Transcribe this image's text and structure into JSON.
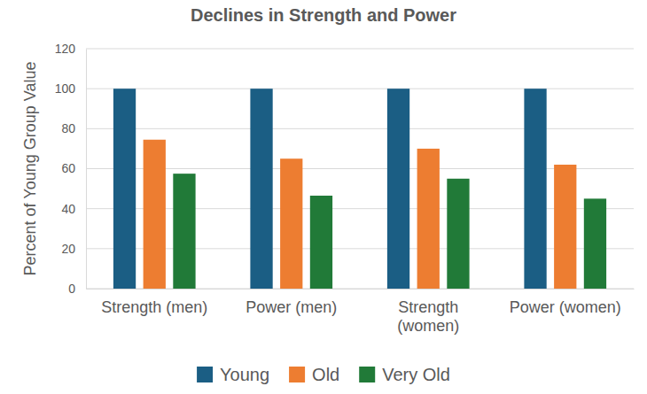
{
  "chart_data": {
    "type": "bar",
    "title": "Declines in Strength and Power",
    "ylabel": "Percent of Young Group Value",
    "categories": [
      "Strength (men)",
      "Power (men)",
      "Strength (women)",
      "Power (women)"
    ],
    "series": [
      {
        "name": "Young",
        "color": "#1b5e84",
        "values": [
          100,
          100,
          100,
          100
        ]
      },
      {
        "name": "Old",
        "color": "#ed7d31",
        "values": [
          74.5,
          65,
          70,
          62
        ]
      },
      {
        "name": "Very Old",
        "color": "#217a38",
        "values": [
          57.5,
          46.5,
          55,
          45
        ]
      }
    ],
    "ylim": [
      0,
      120
    ],
    "yticks": [
      0,
      20,
      40,
      60,
      80,
      100,
      120
    ],
    "grid": true,
    "legend": "bottom"
  }
}
